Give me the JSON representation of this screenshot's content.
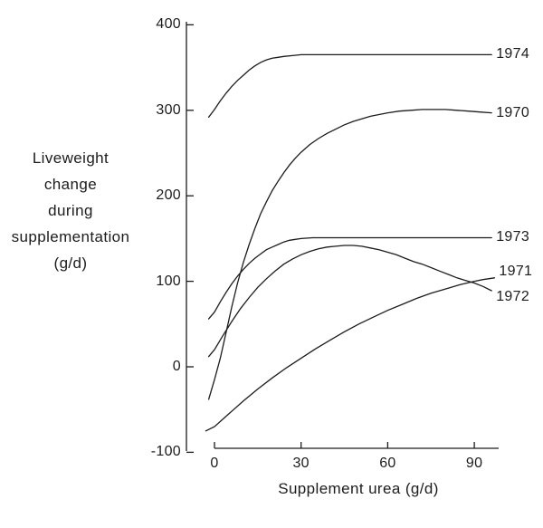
{
  "figure": {
    "background": "#ffffff",
    "ink_color": "#1c1c1c"
  },
  "y_axis": {
    "title_lines": [
      "Liveweight",
      "change",
      "during",
      "supplementation",
      "(g/d)"
    ],
    "ticks": [
      {
        "value": 400,
        "label": "400"
      },
      {
        "value": 300,
        "label": "300"
      },
      {
        "value": 200,
        "label": "200"
      },
      {
        "value": 100,
        "label": "100"
      },
      {
        "value": 0,
        "label": "0"
      },
      {
        "value": -100,
        "label": "-100"
      }
    ]
  },
  "x_axis": {
    "title": "Supplement urea (g/d)",
    "ticks": [
      {
        "value": 0,
        "label": "0"
      },
      {
        "value": 30,
        "label": "30"
      },
      {
        "value": 60,
        "label": "60"
      },
      {
        "value": 90,
        "label": "90"
      }
    ]
  },
  "chart_data": {
    "type": "line",
    "title": "",
    "xlabel": "Supplement urea (g/d)",
    "ylabel": "Liveweight change during supplementation (g/d)",
    "xlim": [
      0,
      100
    ],
    "ylim": [
      -100,
      400
    ],
    "grid": false,
    "legend_position": "right-end-of-curve-labels",
    "x_tick_values": [
      0,
      30,
      60,
      90
    ],
    "y_tick_values": [
      400,
      300,
      200,
      100,
      0,
      -100
    ],
    "series": [
      {
        "name": "1974",
        "label_dy": 0,
        "points": [
          [
            -2,
            292
          ],
          [
            0,
            301
          ],
          [
            2,
            311
          ],
          [
            4,
            320
          ],
          [
            6,
            328
          ],
          [
            8,
            335
          ],
          [
            10,
            341
          ],
          [
            12,
            347
          ],
          [
            14,
            352
          ],
          [
            16,
            356
          ],
          [
            18,
            359
          ],
          [
            20,
            361
          ],
          [
            22,
            362
          ],
          [
            24,
            363
          ],
          [
            27,
            364
          ],
          [
            30,
            365
          ],
          [
            36,
            365
          ],
          [
            44,
            365
          ],
          [
            52,
            365
          ],
          [
            60,
            365
          ],
          [
            70,
            365
          ],
          [
            80,
            365
          ],
          [
            90,
            365
          ],
          [
            96,
            365
          ]
        ]
      },
      {
        "name": "1970",
        "label_dy": 0,
        "points": [
          [
            -2,
            -38
          ],
          [
            0,
            -15
          ],
          [
            2,
            10
          ],
          [
            4,
            40
          ],
          [
            6,
            70
          ],
          [
            8,
            98
          ],
          [
            10,
            122
          ],
          [
            12,
            143
          ],
          [
            14,
            162
          ],
          [
            16,
            179
          ],
          [
            18,
            193
          ],
          [
            20,
            206
          ],
          [
            22,
            217
          ],
          [
            24,
            227
          ],
          [
            26,
            236
          ],
          [
            28,
            244
          ],
          [
            30,
            251
          ],
          [
            33,
            260
          ],
          [
            36,
            267
          ],
          [
            39,
            273
          ],
          [
            42,
            278
          ],
          [
            45,
            283
          ],
          [
            48,
            287
          ],
          [
            51,
            290
          ],
          [
            54,
            293
          ],
          [
            57,
            295
          ],
          [
            60,
            297
          ],
          [
            64,
            299
          ],
          [
            68,
            300
          ],
          [
            72,
            301
          ],
          [
            76,
            301
          ],
          [
            80,
            301
          ],
          [
            84,
            300
          ],
          [
            88,
            299
          ],
          [
            92,
            298
          ],
          [
            96,
            297
          ]
        ]
      },
      {
        "name": "1973",
        "label_dy": 0,
        "points": [
          [
            -2,
            56
          ],
          [
            0,
            64
          ],
          [
            2,
            76
          ],
          [
            4,
            87
          ],
          [
            6,
            97
          ],
          [
            8,
            106
          ],
          [
            10,
            114
          ],
          [
            12,
            121
          ],
          [
            14,
            127
          ],
          [
            16,
            132
          ],
          [
            18,
            137
          ],
          [
            20,
            140
          ],
          [
            22,
            143
          ],
          [
            24,
            146
          ],
          [
            26,
            148
          ],
          [
            28,
            149
          ],
          [
            30,
            150
          ],
          [
            34,
            151
          ],
          [
            40,
            151
          ],
          [
            48,
            151
          ],
          [
            56,
            151
          ],
          [
            64,
            151
          ],
          [
            72,
            151
          ],
          [
            80,
            151
          ],
          [
            88,
            151
          ],
          [
            96,
            151
          ]
        ]
      },
      {
        "name": "1971",
        "label_dy": -7,
        "points": [
          [
            -3,
            -75
          ],
          [
            0,
            -70
          ],
          [
            5,
            -55
          ],
          [
            10,
            -40
          ],
          [
            15,
            -26
          ],
          [
            20,
            -13
          ],
          [
            25,
            -1
          ],
          [
            30,
            10
          ],
          [
            35,
            21
          ],
          [
            40,
            31
          ],
          [
            45,
            41
          ],
          [
            50,
            50
          ],
          [
            55,
            58
          ],
          [
            60,
            66
          ],
          [
            65,
            73
          ],
          [
            70,
            80
          ],
          [
            75,
            86
          ],
          [
            80,
            91
          ],
          [
            85,
            96
          ],
          [
            90,
            100
          ],
          [
            93,
            102
          ],
          [
            97,
            104
          ]
        ]
      },
      {
        "name": "1972",
        "label_dy": 7,
        "points": [
          [
            -2,
            12
          ],
          [
            0,
            20
          ],
          [
            3,
            37
          ],
          [
            6,
            53
          ],
          [
            9,
            68
          ],
          [
            12,
            81
          ],
          [
            15,
            93
          ],
          [
            18,
            103
          ],
          [
            21,
            112
          ],
          [
            24,
            120
          ],
          [
            27,
            126
          ],
          [
            30,
            131
          ],
          [
            33,
            135
          ],
          [
            36,
            138
          ],
          [
            39,
            140
          ],
          [
            42,
            141
          ],
          [
            45,
            142
          ],
          [
            48,
            142
          ],
          [
            51,
            141
          ],
          [
            54,
            139
          ],
          [
            57,
            137
          ],
          [
            60,
            134
          ],
          [
            63,
            131
          ],
          [
            66,
            127
          ],
          [
            69,
            123
          ],
          [
            72,
            120
          ],
          [
            75,
            116
          ],
          [
            78,
            112
          ],
          [
            81,
            108
          ],
          [
            84,
            104
          ],
          [
            87,
            101
          ],
          [
            90,
            98
          ],
          [
            93,
            94
          ],
          [
            96,
            89
          ]
        ]
      }
    ]
  }
}
